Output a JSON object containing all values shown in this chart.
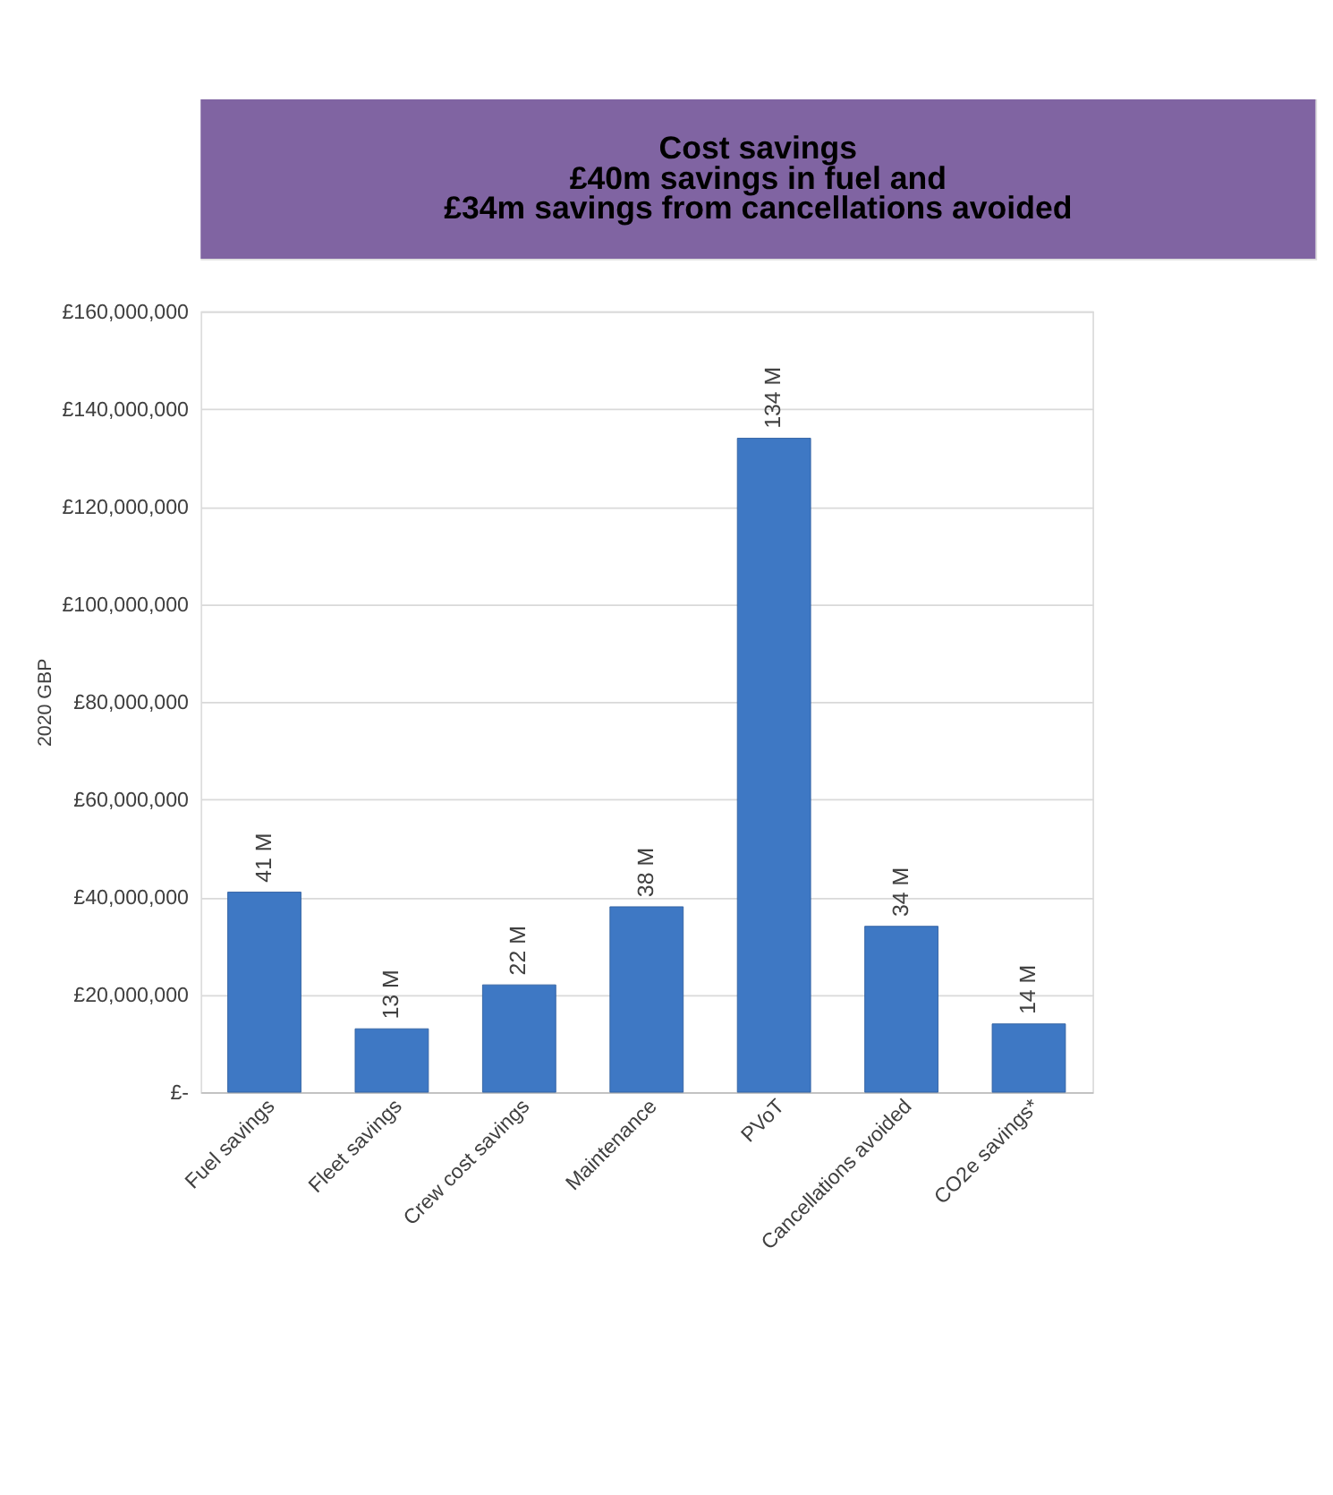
{
  "chart_data": {
    "type": "bar",
    "title": "Cost savings\n£40m savings in fuel and\n£34m savings from cancellations avoided",
    "ylabel": "2020 GBP",
    "categories": [
      "Fuel savings",
      "Fleet savings",
      "Crew cost savings",
      "Maintenance",
      "PVoT",
      "Cancellations avoided",
      "CO2e savings*"
    ],
    "values": [
      41000000,
      13000000,
      22000000,
      38000000,
      134000000,
      34000000,
      14000000
    ],
    "value_labels": [
      "41 M",
      "13 M",
      "22 M",
      "38 M",
      "134 M",
      "34 M",
      "14 M"
    ],
    "color": "#3e78c4",
    "ylim": [
      0,
      160000000
    ],
    "yticks": [
      {
        "value": 0,
        "label": "£-"
      },
      {
        "value": 20000000,
        "label": "£20,000,000"
      },
      {
        "value": 40000000,
        "label": "£40,000,000"
      },
      {
        "value": 60000000,
        "label": "£60,000,000"
      },
      {
        "value": 80000000,
        "label": "£80,000,000"
      },
      {
        "value": 100000000,
        "label": "£100,000,000"
      },
      {
        "value": 120000000,
        "label": "£120,000,000"
      },
      {
        "value": 140000000,
        "label": "£140,000,000"
      },
      {
        "value": 160000000,
        "label": "£160,000,000"
      }
    ],
    "grid": "y"
  }
}
